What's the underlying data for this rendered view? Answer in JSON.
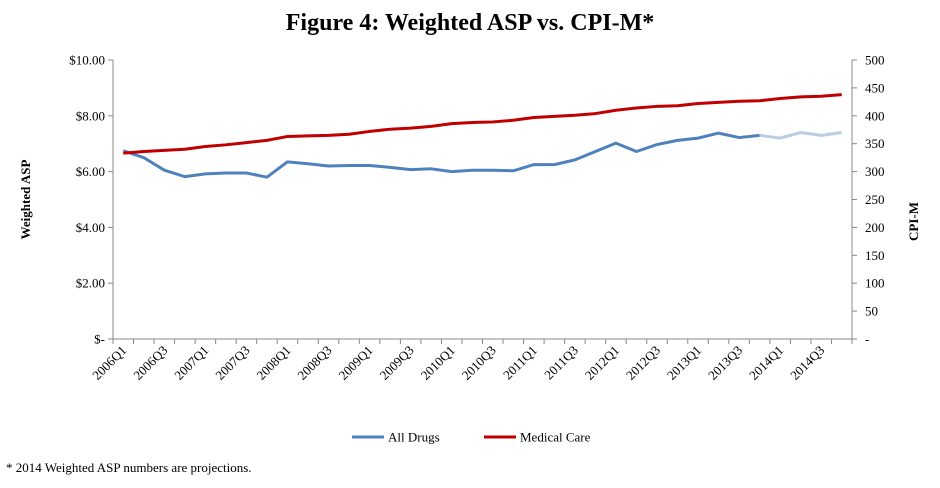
{
  "chart_data": {
    "type": "line",
    "title": "Figure 4: Weighted ASP vs. CPI-M*",
    "ylabel": "Weighted ASP",
    "y2label": "CPI-M",
    "ylim": [
      0,
      10
    ],
    "y2lim": [
      0,
      500
    ],
    "y_ticks": [
      "$-",
      "$2.00",
      "$4.00",
      "$6.00",
      "$8.00",
      "$10.00"
    ],
    "y2_ticks": [
      "-",
      "50",
      "100",
      "150",
      "200",
      "250",
      "300",
      "350",
      "400",
      "450",
      "500"
    ],
    "categories": [
      "2006Q1",
      "2006Q2",
      "2006Q3",
      "2006Q4",
      "2007Q1",
      "2007Q2",
      "2007Q3",
      "2007Q4",
      "2008Q1",
      "2008Q2",
      "2008Q3",
      "2008Q4",
      "2009Q1",
      "2009Q2",
      "2009Q3",
      "2009Q4",
      "2010Q1",
      "2010Q2",
      "2010Q3",
      "2010Q4",
      "2011Q1",
      "2011Q2",
      "2011Q3",
      "2011Q4",
      "2012Q1",
      "2012Q2",
      "2012Q3",
      "2012Q4",
      "2013Q1",
      "2013Q2",
      "2013Q3",
      "2013Q4",
      "2014Q1",
      "2014Q2",
      "2014Q3",
      "2014Q4"
    ],
    "x_tick_labels": [
      "2006Q1",
      "2006Q3",
      "2007Q1",
      "2007Q3",
      "2008Q1",
      "2008Q3",
      "2009Q1",
      "2009Q3",
      "2010Q1",
      "2010Q3",
      "2011Q1",
      "2011Q3",
      "2012Q1",
      "2012Q3",
      "2013Q1",
      "2013Q3",
      "2014Q1",
      "2014Q3"
    ],
    "series": [
      {
        "name": "All Drugs",
        "axis": "left",
        "color": "#4f81bd",
        "projection_color": "#b9cde5",
        "projection_start_index": 31,
        "values": [
          6.75,
          6.5,
          6.05,
          5.82,
          5.92,
          5.95,
          5.95,
          5.8,
          6.35,
          6.28,
          6.2,
          6.22,
          6.22,
          6.15,
          6.07,
          6.1,
          6.0,
          6.05,
          6.05,
          6.03,
          6.25,
          6.25,
          6.42,
          6.72,
          7.02,
          6.72,
          6.97,
          7.12,
          7.2,
          7.38,
          7.22,
          7.3,
          7.2,
          7.4,
          7.3,
          7.4
        ]
      },
      {
        "name": "Medical Care",
        "axis": "right",
        "color": "#c00000",
        "values": [
          333,
          336,
          338,
          340,
          345,
          348,
          352,
          356,
          363,
          364,
          365,
          367,
          372,
          376,
          378,
          381,
          386,
          388,
          389,
          392,
          397,
          399,
          401,
          404,
          410,
          414,
          417,
          418,
          422,
          424,
          426,
          427,
          431,
          434,
          435,
          438
        ]
      }
    ]
  },
  "footnote": "* 2014 Weighted ASP numbers are projections."
}
